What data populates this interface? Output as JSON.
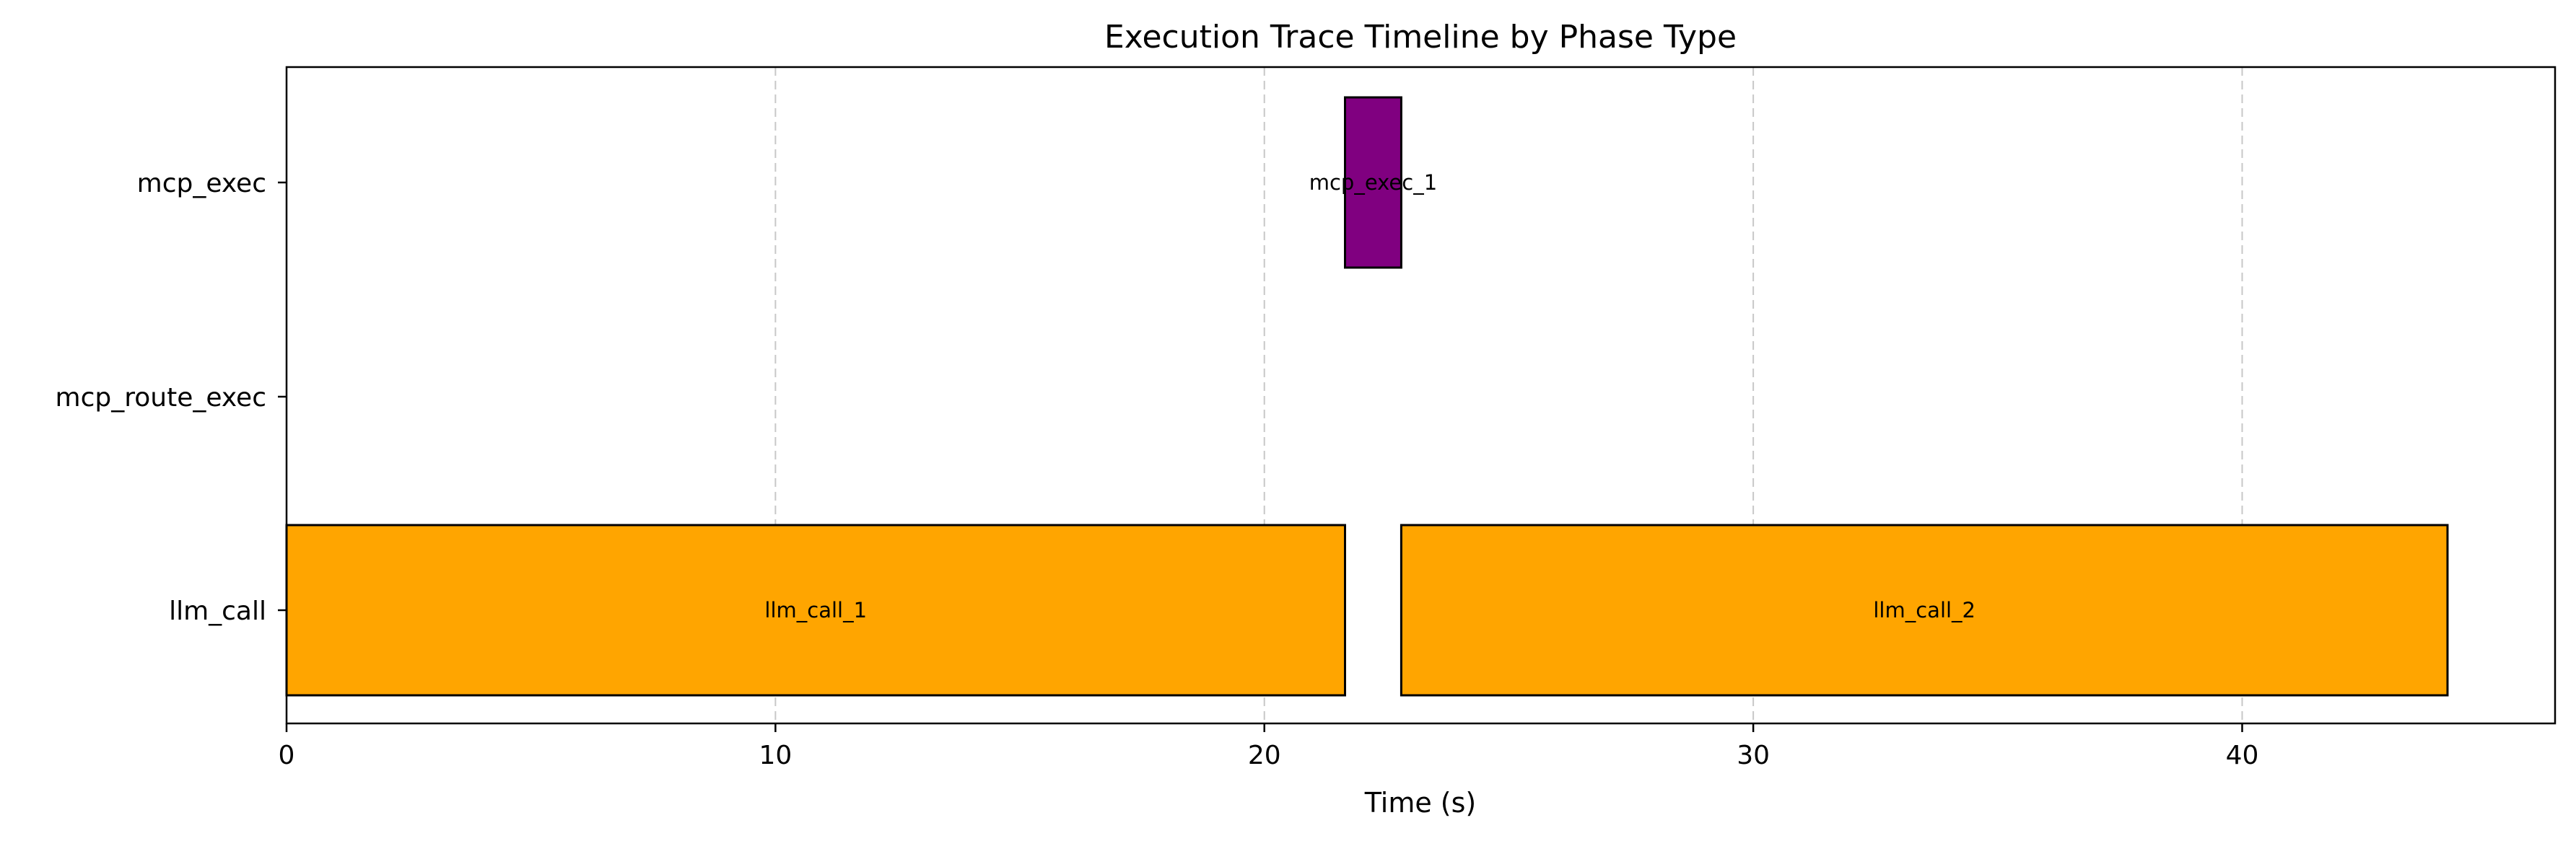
{
  "chart_data": {
    "type": "bar",
    "orientation": "horizontal-timeline",
    "title": "Execution Trace Timeline by Phase Type",
    "xlabel": "Time (s)",
    "ylabel": "",
    "xlim": [
      0,
      46.4
    ],
    "xticks": [
      0,
      10,
      20,
      30,
      40
    ],
    "grid": "x-dashed",
    "categories": [
      "mcp_exec",
      "mcp_route_exec",
      "llm_call"
    ],
    "bars": [
      {
        "label": "llm_call_1",
        "category": "llm_call",
        "start": 0.0,
        "end": 21.65,
        "color": "#FFA500"
      },
      {
        "label": "llm_call_2",
        "category": "llm_call",
        "start": 22.8,
        "end": 44.2,
        "color": "#FFA500"
      },
      {
        "label": "mcp_exec_1",
        "category": "mcp_exec",
        "start": 21.65,
        "end": 22.8,
        "color": "#800080"
      }
    ]
  }
}
